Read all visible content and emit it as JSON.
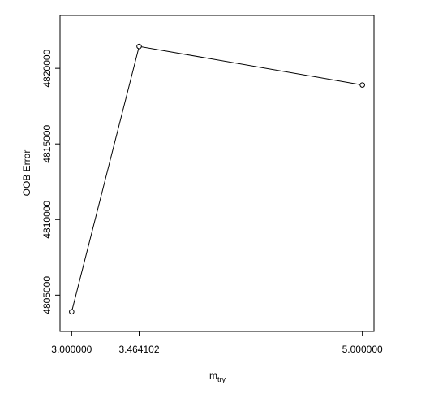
{
  "chart_data": {
    "type": "line",
    "title": "",
    "xlabel_main": "m",
    "xlabel_sub": "try",
    "ylabel": "OOB Error",
    "x": [
      3.0,
      3.464102,
      5.0
    ],
    "x_tick_labels": [
      "3.000000",
      "3.464102",
      "5.000000"
    ],
    "series": [
      {
        "values": [
          4803900,
          4821450,
          4818900
        ]
      }
    ],
    "xlim": [
      2.92,
      5.08
    ],
    "ylim": [
      4802600,
      4823500
    ],
    "y_ticks": [
      4805000,
      4810000,
      4815000,
      4820000
    ],
    "y_tick_labels": [
      "4805000",
      "4810000",
      "4815000",
      "4820000"
    ],
    "markers": "open-circle",
    "grid": false,
    "legend": "none",
    "line_color": "#000000"
  }
}
